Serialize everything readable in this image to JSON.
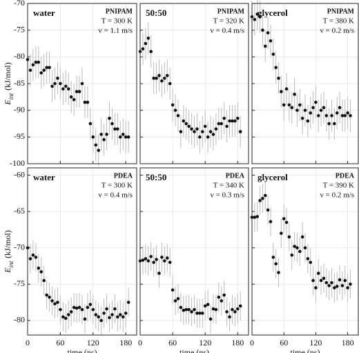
{
  "chart_data": [
    {
      "type": "scatter",
      "label": "water",
      "polymer": "PNIPAM",
      "temperature": "T = 300 K",
      "velocity": "v = 1.1 m/s",
      "ylabel": "E",
      "ylabel_sub": "int",
      "ylabel_unit": "(kJ/mol)",
      "x": [
        0,
        5,
        10,
        15,
        20,
        25,
        30,
        35,
        40,
        45,
        50,
        55,
        60,
        65,
        70,
        75,
        80,
        85,
        90,
        95,
        100,
        105,
        110,
        115,
        120,
        125,
        130,
        135,
        140,
        145,
        150,
        155,
        160,
        165,
        170,
        175,
        180,
        185
      ],
      "values": [
        -80.5,
        -82.5,
        -81.5,
        -81,
        -81,
        -83,
        -82.5,
        -82,
        -82,
        -85.5,
        -85,
        -84,
        -85,
        -86,
        -85.5,
        -86,
        -87.5,
        -88,
        -86.5,
        -86.5,
        -85,
        -88.5,
        -88.5,
        -92.5,
        -95,
        -96.5,
        -97.5,
        -94.5,
        -95.5,
        -94.5,
        -91.5,
        -92.5,
        -93.5,
        -93.5,
        -95,
        -94.5,
        -95,
        -95
      ],
      "errors": [
        3,
        3,
        3,
        3,
        3,
        3,
        3,
        3,
        3,
        3,
        3,
        3,
        3,
        3,
        3,
        3,
        3,
        3,
        3,
        3,
        3,
        3,
        3,
        3,
        3,
        3,
        3,
        3,
        3,
        3,
        3,
        3,
        3,
        3,
        3,
        3,
        3,
        3
      ],
      "color": "#111111",
      "error_color": "#bbbbbb",
      "xlim": [
        0,
        200
      ],
      "ylim": [
        -100,
        -70
      ],
      "xticks": [
        0,
        60,
        120,
        180
      ],
      "yticks": [
        -100,
        -95,
        -90,
        -85,
        -80,
        -75,
        -70
      ],
      "grid": true
    },
    {
      "type": "scatter",
      "label": "50:50",
      "polymer": "PNIPAM",
      "temperature": "T = 320 K",
      "velocity": "v = 0.4 m/s",
      "x": [
        0,
        5,
        10,
        15,
        20,
        25,
        30,
        35,
        40,
        45,
        50,
        55,
        60,
        65,
        70,
        75,
        80,
        85,
        90,
        95,
        100,
        105,
        110,
        115,
        120,
        125,
        130,
        135,
        140,
        145,
        150,
        155,
        160,
        165,
        170,
        175,
        180,
        185
      ],
      "values": [
        -79,
        -78.5,
        -77.5,
        -76.5,
        -79,
        -84,
        -84,
        -83.5,
        -84.5,
        -84,
        -83.5,
        -85,
        -89,
        -90,
        -91,
        -94,
        -92,
        -92.5,
        -93,
        -93.5,
        -94,
        -93.5,
        -95,
        -94,
        -93,
        -95,
        -94,
        -94.5,
        -93.5,
        -92.5,
        -92.5,
        -91.5,
        -93,
        -92,
        -92,
        -92,
        -91.5,
        -94
      ],
      "errors": [
        3,
        3,
        3,
        3,
        3,
        3,
        3,
        3,
        3,
        3,
        3,
        3,
        3,
        3,
        3,
        3,
        3,
        3,
        3,
        3,
        3,
        3,
        3,
        3,
        3,
        3,
        3,
        3,
        3,
        3,
        3,
        3,
        3,
        3,
        3,
        3,
        3,
        3
      ],
      "color": "#111111",
      "error_color": "#bbbbbb",
      "xlim": [
        0,
        200
      ],
      "ylim": [
        -100,
        -70
      ],
      "xticks": [
        0,
        60,
        120,
        180
      ],
      "yticks": [
        -100,
        -95,
        -90,
        -85,
        -80,
        -75,
        -70
      ],
      "grid": true
    },
    {
      "type": "scatter",
      "label": "glycerol",
      "polymer": "PNIPAM",
      "temperature": "T = 380 K",
      "velocity": "v = 0.2 m/s",
      "x": [
        0,
        5,
        10,
        15,
        20,
        25,
        30,
        35,
        40,
        45,
        50,
        55,
        60,
        65,
        70,
        75,
        80,
        85,
        90,
        95,
        100,
        105,
        110,
        115,
        120,
        125,
        130,
        135,
        140,
        145,
        150,
        155,
        160,
        165,
        170,
        175,
        180,
        185
      ],
      "values": [
        -72.5,
        -73,
        -72,
        -72.5,
        -75,
        -78,
        -75.5,
        -77,
        -79.5,
        -82,
        -84,
        -86.5,
        -89,
        -86,
        -89,
        -89.5,
        -87,
        -90,
        -89,
        -91.5,
        -90,
        -92,
        -90.5,
        -89.5,
        -88.5,
        -91,
        -90,
        -89.5,
        -91,
        -92.5,
        -91,
        -92.5,
        -90.5,
        -89.5,
        -91,
        -91,
        -90.5,
        -91
      ],
      "errors": [
        3,
        3,
        3,
        3,
        3,
        3,
        3,
        3,
        3,
        3,
        3,
        3,
        3,
        3,
        3,
        3,
        3,
        3,
        3,
        3,
        3,
        3,
        3,
        3,
        3,
        3,
        3,
        3,
        3,
        3,
        3,
        3,
        3,
        3,
        3,
        3,
        3,
        3
      ],
      "color": "#111111",
      "error_color": "#bbbbbb",
      "xlim": [
        0,
        200
      ],
      "ylim": [
        -100,
        -70
      ],
      "xticks": [
        0,
        60,
        120,
        180
      ],
      "yticks": [
        -100,
        -95,
        -90,
        -85,
        -80,
        -75,
        -70
      ],
      "grid": true
    },
    {
      "type": "scatter",
      "label": "water",
      "polymer": "PDEA",
      "temperature": "T = 300 K",
      "velocity": "v = 0.4 m/s",
      "ylabel": "E",
      "ylabel_sub": "int",
      "ylabel_unit": "(kJ/mol)",
      "xlabel": "time (ns)",
      "x": [
        0,
        5,
        10,
        15,
        20,
        25,
        30,
        35,
        40,
        45,
        50,
        55,
        60,
        65,
        70,
        75,
        80,
        85,
        90,
        95,
        100,
        105,
        110,
        115,
        120,
        125,
        130,
        135,
        140,
        145,
        150,
        155,
        160,
        165,
        170,
        175,
        180,
        185
      ],
      "values": [
        -70,
        -71.5,
        -71,
        -71.3,
        -72.8,
        -73.3,
        -74.5,
        -76.5,
        -76.8,
        -77.3,
        -77.7,
        -77.5,
        -78.5,
        -79.5,
        -79.7,
        -79.2,
        -78.8,
        -78.2,
        -78.3,
        -78.2,
        -78.5,
        -79.8,
        -78.2,
        -77.8,
        -78.5,
        -79.2,
        -79.5,
        -80,
        -79,
        -78.4,
        -79.6,
        -79.2,
        -78.4,
        -79.5,
        -79.2,
        -79.5,
        -79,
        -77.5
      ],
      "errors": [
        2,
        2,
        2,
        2,
        2,
        2,
        2,
        2,
        2,
        2,
        2,
        2,
        2,
        2,
        2,
        2,
        2,
        2,
        2,
        2,
        2,
        2,
        2,
        2,
        2,
        2,
        2,
        2,
        2,
        2,
        2,
        2,
        2,
        2,
        2,
        2,
        2,
        2
      ],
      "color": "#111111",
      "error_color": "#bbbbbb",
      "xlim": [
        0,
        200
      ],
      "ylim": [
        -82,
        -59
      ],
      "xticks": [
        0,
        60,
        120,
        180
      ],
      "yticks": [
        -80,
        -75,
        -70,
        -65,
        -60
      ],
      "grid": true
    },
    {
      "type": "scatter",
      "label": "50:50",
      "polymer": "PDEA",
      "temperature": "T = 340 K",
      "velocity": "v = 0.3 m/s",
      "xlabel": "time (ns)",
      "x": [
        0,
        5,
        10,
        15,
        20,
        25,
        30,
        35,
        40,
        45,
        50,
        55,
        60,
        65,
        70,
        75,
        80,
        85,
        90,
        95,
        100,
        105,
        110,
        115,
        120,
        125,
        130,
        135,
        140,
        145,
        150,
        155,
        160,
        165,
        170,
        175,
        180,
        185
      ],
      "values": [
        -71.8,
        -71.7,
        -71.5,
        -71.8,
        -71.2,
        -72,
        -71.6,
        -73.5,
        -71.3,
        -71.8,
        -71.4,
        -72,
        -75.8,
        -77.3,
        -77,
        -78.2,
        -78.6,
        -78.5,
        -78.5,
        -78.8,
        -78.5,
        -79,
        -79,
        -79,
        -78,
        -77.8,
        -79.8,
        -78.4,
        -78.5,
        -76.8,
        -77.3,
        -76.5,
        -78.8,
        -79.5,
        -78.5,
        -78.8,
        -78.4,
        -78
      ],
      "errors": [
        2,
        2,
        2,
        2,
        2,
        2,
        2,
        2,
        2,
        2,
        2,
        2,
        2,
        2,
        2,
        2,
        2,
        2,
        2,
        2,
        2,
        2,
        2,
        2,
        2,
        2,
        2,
        2,
        2,
        2,
        2,
        2,
        2,
        2,
        2,
        2,
        2,
        2
      ],
      "color": "#111111",
      "error_color": "#bbbbbb",
      "xlim": [
        0,
        200
      ],
      "ylim": [
        -82,
        -59
      ],
      "xticks": [
        0,
        60,
        120,
        180
      ],
      "yticks": [
        -80,
        -75,
        -70,
        -65,
        -60
      ],
      "grid": true
    },
    {
      "type": "scatter",
      "label": "glycerol",
      "polymer": "PDEA",
      "temperature": "T = 390 K",
      "velocity": "v = 0.2 m/s",
      "xlabel": "time (ns)",
      "x": [
        0,
        5,
        10,
        15,
        20,
        25,
        30,
        35,
        40,
        45,
        50,
        55,
        60,
        65,
        70,
        75,
        80,
        85,
        90,
        95,
        100,
        105,
        110,
        115,
        120,
        125,
        130,
        135,
        140,
        145,
        150,
        155,
        160,
        165,
        170,
        175,
        180,
        185
      ],
      "values": [
        -65.8,
        -65.8,
        -65.7,
        -63.5,
        -63.2,
        -62.8,
        -64.8,
        -66.4,
        -71.3,
        -72.2,
        -73.4,
        -68,
        -66,
        -66.5,
        -68.5,
        -71,
        -69.8,
        -70,
        -70.5,
        -68.5,
        -70,
        -71.5,
        -72,
        -74.5,
        -75.5,
        -73.5,
        -74.5,
        -74.2,
        -74.8,
        -75.2,
        -74.8,
        -75.5,
        -75.3,
        -74.4,
        -75.2,
        -74.5,
        -75.5,
        -75
      ],
      "errors": [
        2,
        2,
        2,
        2,
        2,
        2,
        2,
        2,
        2,
        2,
        2,
        2,
        2,
        2,
        2,
        2,
        2,
        2,
        2,
        2,
        2,
        2,
        2,
        2,
        2,
        2,
        2,
        2,
        2,
        2,
        2,
        2,
        2,
        2,
        2,
        2,
        2,
        2
      ],
      "color": "#111111",
      "error_color": "#bbbbbb",
      "xlim": [
        0,
        200
      ],
      "ylim": [
        -82,
        -59
      ],
      "xticks": [
        0,
        60,
        120,
        180
      ],
      "yticks": [
        -80,
        -75,
        -70,
        -65,
        -60
      ],
      "grid": true
    }
  ]
}
